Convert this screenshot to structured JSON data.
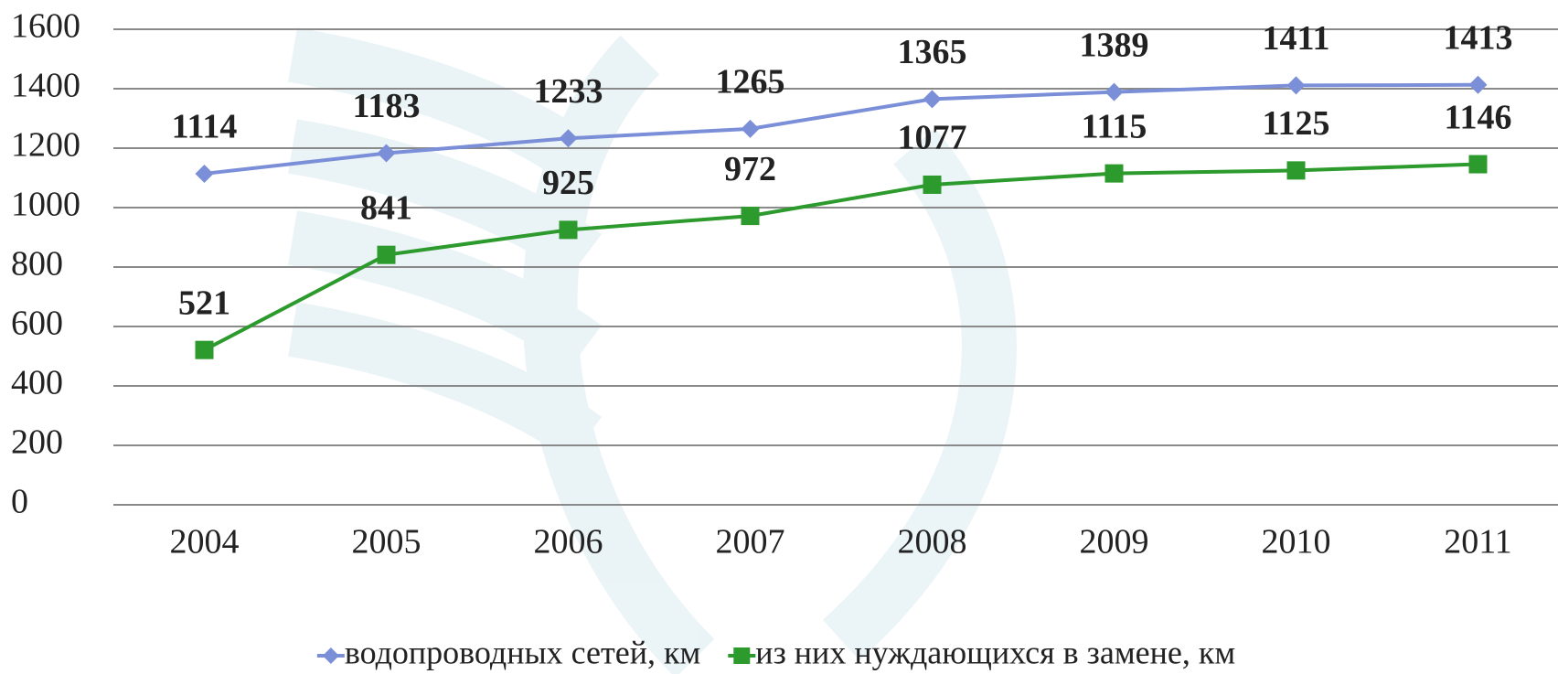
{
  "chart_data": {
    "type": "line",
    "categories": [
      "2004",
      "2005",
      "2006",
      "2007",
      "2008",
      "2009",
      "2010",
      "2011"
    ],
    "series": [
      {
        "name": "водопроводных сетей, км",
        "color": "#7b8fd8",
        "marker": "diamond",
        "values": [
          1114,
          1183,
          1233,
          1265,
          1365,
          1389,
          1411,
          1413
        ]
      },
      {
        "name": "из них нуждающихся в замене, км",
        "color": "#2c9a2c",
        "marker": "square",
        "values": [
          521,
          841,
          925,
          972,
          1077,
          1115,
          1125,
          1146
        ]
      }
    ],
    "ylim": [
      0,
      1600
    ],
    "yticks": [
      0,
      200,
      400,
      600,
      800,
      1000,
      1200,
      1400,
      1600
    ],
    "grid": true
  }
}
